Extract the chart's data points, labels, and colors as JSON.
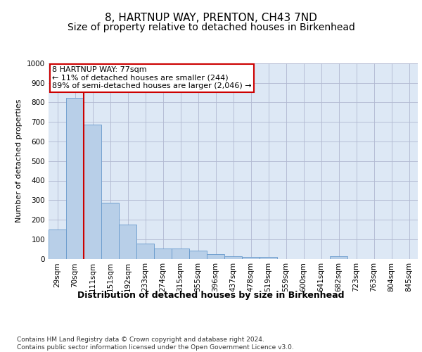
{
  "title": "8, HARTNUP WAY, PRENTON, CH43 7ND",
  "subtitle": "Size of property relative to detached houses in Birkenhead",
  "xlabel": "Distribution of detached houses by size in Birkenhead",
  "ylabel": "Number of detached properties",
  "categories": [
    "29sqm",
    "70sqm",
    "111sqm",
    "151sqm",
    "192sqm",
    "233sqm",
    "274sqm",
    "315sqm",
    "355sqm",
    "396sqm",
    "437sqm",
    "478sqm",
    "519sqm",
    "559sqm",
    "600sqm",
    "641sqm",
    "682sqm",
    "723sqm",
    "763sqm",
    "804sqm",
    "845sqm"
  ],
  "values": [
    150,
    825,
    685,
    285,
    175,
    78,
    53,
    52,
    42,
    22,
    13,
    10,
    10,
    0,
    0,
    0,
    12,
    0,
    0,
    0,
    0
  ],
  "bar_color": "#b8cfe8",
  "bar_edge_color": "#6699cc",
  "red_line_x": 1.5,
  "annotation_text": "8 HARTNUP WAY: 77sqm\n← 11% of detached houses are smaller (244)\n89% of semi-detached houses are larger (2,046) →",
  "annotation_box_color": "#ffffff",
  "annotation_box_edge": "#cc0000",
  "ylim": [
    0,
    1000
  ],
  "yticks": [
    0,
    100,
    200,
    300,
    400,
    500,
    600,
    700,
    800,
    900,
    1000
  ],
  "footer": "Contains HM Land Registry data © Crown copyright and database right 2024.\nContains public sector information licensed under the Open Government Licence v3.0.",
  "bg_color": "#ffffff",
  "plot_bg_color": "#dde8f5",
  "grid_color": "#b0b8d0",
  "title_fontsize": 11,
  "subtitle_fontsize": 10,
  "xlabel_fontsize": 9,
  "ylabel_fontsize": 8,
  "tick_fontsize": 7.5,
  "annotation_fontsize": 8,
  "footer_fontsize": 6.5
}
